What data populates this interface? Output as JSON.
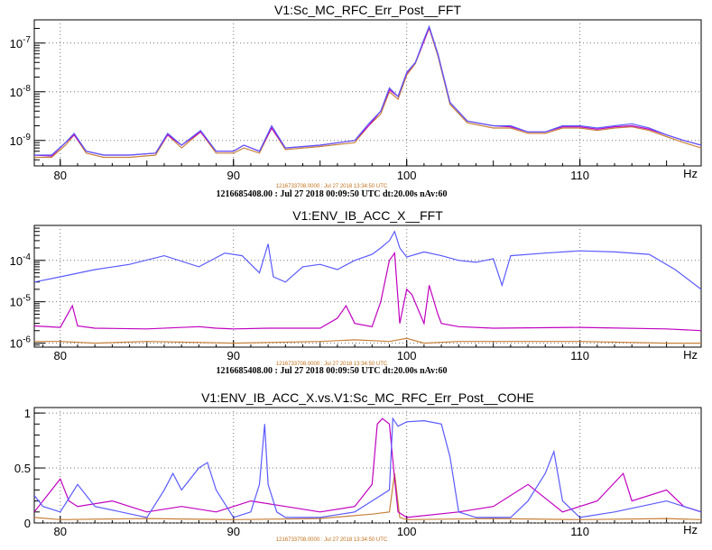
{
  "chart_data": [
    {
      "type": "line",
      "title": "V1:Sc_MC_RFC_Err_Post__FFT",
      "yscale": "log",
      "xlim": [
        78.5,
        117
      ],
      "ylim": [
        3e-10,
        3e-07
      ],
      "x_ticks": [
        "80",
        "90",
        "100",
        "110"
      ],
      "y_ticks": [
        "10^-9",
        "10^-8",
        "10^-7"
      ],
      "grid": true,
      "info_small": "1216733708.0000 : Jul 27 2018 13:34:50 UTC",
      "info": "1216685408.00 : Jul 27 2018 00:09:50 UTC dt:20.00s nAv:60",
      "axis_corner": "Hz",
      "series": [
        {
          "color": "#5a5aff",
          "x": [
            78.5,
            79.5,
            80.3,
            80.8,
            81.5,
            82.5,
            84,
            85.5,
            86.2,
            87,
            88.1,
            89,
            90,
            90.6,
            91.5,
            92.2,
            93,
            95,
            97,
            97.8,
            98.5,
            99,
            99.5,
            100,
            100.5,
            101,
            101.3,
            101.8,
            102.5,
            103.5,
            105,
            106,
            107,
            108,
            109,
            110,
            111,
            112,
            113,
            114,
            115,
            116,
            117
          ],
          "y": [
            5e-10,
            5e-10,
            9e-10,
            1.4e-09,
            6e-10,
            5e-10,
            5e-10,
            5.5e-10,
            1.4e-09,
            8e-10,
            1.6e-09,
            6e-10,
            6e-10,
            8e-10,
            6e-10,
            2e-09,
            7e-10,
            8e-10,
            1e-09,
            2.2e-09,
            4e-09,
            1.2e-08,
            8e-09,
            2.5e-08,
            4e-08,
            1.2e-07,
            2.2e-07,
            6e-08,
            6e-09,
            2.5e-09,
            2e-09,
            2e-09,
            1.5e-09,
            1.5e-09,
            2e-09,
            2e-09,
            1.8e-09,
            2e-09,
            2.2e-09,
            1.8e-09,
            1.3e-09,
            1e-09,
            8e-10
          ]
        },
        {
          "color": "#c000c0",
          "x": [
            78.5,
            79.5,
            80.3,
            80.8,
            81.5,
            82.5,
            84,
            85.5,
            86.2,
            87,
            88.1,
            89,
            90,
            90.6,
            91.5,
            92.2,
            93,
            95,
            97,
            97.8,
            98.5,
            99,
            99.5,
            100,
            100.5,
            101,
            101.3,
            101.8,
            102.5,
            103.5,
            105,
            106,
            107,
            108,
            109,
            110,
            111,
            112,
            113,
            114,
            115,
            116,
            117
          ],
          "y": [
            5e-10,
            4.8e-10,
            9e-10,
            1.3e-09,
            6e-10,
            5e-10,
            5e-10,
            5.5e-10,
            1.3e-09,
            8e-10,
            1.5e-09,
            6e-10,
            6e-10,
            8e-10,
            6e-10,
            1.8e-09,
            7e-10,
            8e-10,
            1e-09,
            2e-09,
            4e-09,
            1.1e-08,
            8e-09,
            2.4e-08,
            4e-08,
            1.1e-07,
            2.1e-07,
            6e-08,
            6e-09,
            2.5e-09,
            2e-09,
            1.9e-09,
            1.5e-09,
            1.5e-09,
            1.9e-09,
            1.9e-09,
            1.7e-09,
            1.9e-09,
            2e-09,
            1.7e-09,
            1.3e-09,
            1e-09,
            8e-10
          ]
        },
        {
          "color": "#c8813a",
          "x": [
            78.5,
            79.5,
            80.3,
            80.8,
            81.5,
            82.5,
            84,
            85.5,
            86.2,
            87,
            88.1,
            89,
            90,
            90.6,
            91.5,
            92.2,
            93,
            95,
            97,
            97.8,
            98.5,
            99,
            99.5,
            100,
            100.5,
            101,
            101.3,
            101.8,
            102.5,
            103.5,
            105,
            106,
            107,
            108,
            109,
            110,
            111,
            112,
            113,
            114,
            115,
            116,
            117
          ],
          "y": [
            4.5e-10,
            4.5e-10,
            8e-10,
            1.3e-09,
            5.5e-10,
            4.5e-10,
            4.5e-10,
            5e-10,
            1.3e-09,
            7e-10,
            1.5e-09,
            5.5e-10,
            5.5e-10,
            7e-10,
            5.5e-10,
            1.8e-09,
            6.5e-10,
            7.5e-10,
            9e-10,
            2e-09,
            3.5e-09,
            1e-08,
            7e-09,
            2.2e-08,
            3.8e-08,
            1.1e-07,
            2e-07,
            5.5e-08,
            5.5e-09,
            2.3e-09,
            1.8e-09,
            1.8e-09,
            1.4e-09,
            1.4e-09,
            1.8e-09,
            1.8e-09,
            1.6e-09,
            1.8e-09,
            1.9e-09,
            1.6e-09,
            1.2e-09,
            9e-10,
            7e-10
          ]
        }
      ]
    },
    {
      "type": "line",
      "title": "V1:ENV_IB_ACC_X__FFT",
      "yscale": "log",
      "xlim": [
        78.5,
        117
      ],
      "ylim": [
        8e-07,
        0.0007
      ],
      "x_ticks": [
        "80",
        "90",
        "100",
        "110"
      ],
      "y_ticks": [
        "10^-6",
        "10^-5",
        "10^-4"
      ],
      "grid": true,
      "info_small": "1216733708.0000 : Jul 27 2018 13:34:50 UTC",
      "info": "1216685408.00 : Jul 27 2018 00:09:50 UTC dt:20.00s nAv:60",
      "axis_corner": "Hz",
      "series": [
        {
          "color": "#5a5aff",
          "x": [
            78.5,
            80,
            82,
            84,
            86,
            88,
            89.5,
            90.5,
            91.5,
            92,
            92.3,
            93,
            94,
            95,
            96,
            97,
            98,
            98.5,
            99,
            99.3,
            99.6,
            100,
            101,
            102,
            103,
            104,
            105,
            105.5,
            106,
            108,
            110,
            112,
            114,
            115.5,
            117
          ],
          "y": [
            3e-05,
            4e-05,
            6e-05,
            8e-05,
            0.00013,
            7e-05,
            0.00015,
            0.00013,
            5e-05,
            0.00025,
            4e-05,
            3e-05,
            7e-05,
            8e-05,
            6e-05,
            0.0001,
            0.00014,
            0.0002,
            0.0003,
            0.0005,
            0.0002,
            0.00012,
            0.00016,
            0.00013,
            0.0001,
            9e-05,
            0.00011,
            2.5e-05,
            0.00013,
            0.00015,
            0.00017,
            0.00016,
            0.00014,
            6e-05,
            2e-05
          ]
        },
        {
          "color": "#c000c0",
          "x": [
            78.5,
            80,
            80.7,
            81,
            82,
            85,
            88,
            89,
            90,
            92,
            95,
            96,
            96.5,
            97,
            98,
            98.5,
            98.8,
            99,
            99.3,
            99.6,
            100,
            100.3,
            101,
            101.3,
            101.8,
            102,
            103,
            105,
            110,
            115,
            117
          ],
          "y": [
            2.6e-06,
            2.4e-06,
            8e-06,
            2.6e-06,
            2.3e-06,
            2.2e-06,
            2.5e-06,
            2.3e-06,
            2.2e-06,
            2.3e-06,
            2.3e-06,
            4e-06,
            8e-06,
            3e-06,
            2.5e-06,
            1e-05,
            4e-05,
            0.0001,
            0.00015,
            3e-06,
            2e-05,
            1.5e-05,
            3e-06,
            2.5e-05,
            5e-06,
            3e-06,
            2.5e-06,
            2.3e-06,
            2.4e-06,
            2.2e-06,
            2e-06
          ]
        },
        {
          "color": "#c8813a",
          "x": [
            78.5,
            80,
            82,
            85,
            90,
            95,
            97,
            99,
            100,
            101,
            103,
            105,
            110,
            115,
            117
          ],
          "y": [
            1.1e-06,
            1.1e-06,
            1e-06,
            1.1e-06,
            1e-06,
            1.1e-06,
            1.2e-06,
            1.1e-06,
            1.3e-06,
            1e-06,
            1.1e-06,
            1.1e-06,
            1.1e-06,
            1e-06,
            1e-06
          ]
        }
      ]
    },
    {
      "type": "line",
      "title": "V1:ENV_IB_ACC_X.vs.V1:Sc_MC_RFC_Err_Post__COHE",
      "yscale": "linear",
      "xlim": [
        78.5,
        117
      ],
      "ylim": [
        0,
        1.05
      ],
      "x_ticks": [
        "80",
        "90",
        "100",
        "110"
      ],
      "y_ticks": [
        "0",
        "0.5",
        "1"
      ],
      "grid": true,
      "info_small": "1216733708.0000 : Jul 27 2018 13:34:50 UTC",
      "axis_corner": "Hz",
      "series": [
        {
          "color": "#5a5aff",
          "x": [
            78.5,
            79,
            80,
            81,
            82,
            85,
            86,
            86.5,
            87,
            88,
            88.5,
            89,
            90,
            91,
            91.5,
            91.8,
            92,
            92.5,
            93,
            95,
            97,
            98,
            99,
            99.2,
            99.5,
            100,
            101,
            102,
            102.5,
            103,
            104,
            106,
            107,
            108,
            108.5,
            109,
            110,
            112,
            115,
            117
          ],
          "y": [
            0.25,
            0.15,
            0.1,
            0.35,
            0.15,
            0.05,
            0.3,
            0.45,
            0.3,
            0.5,
            0.55,
            0.3,
            0.05,
            0.1,
            0.35,
            0.9,
            0.35,
            0.1,
            0.05,
            0.05,
            0.1,
            0.2,
            0.3,
            0.95,
            0.88,
            0.92,
            0.93,
            0.9,
            0.6,
            0.1,
            0.05,
            0.05,
            0.2,
            0.45,
            0.65,
            0.2,
            0.05,
            0.1,
            0.2,
            0.1
          ]
        },
        {
          "color": "#c000c0",
          "x": [
            78.5,
            79.5,
            80,
            80.5,
            81,
            83,
            85,
            87,
            89,
            91,
            93,
            95,
            97,
            98,
            98.3,
            98.6,
            99,
            99.3,
            99.5,
            100,
            103,
            105,
            107,
            109,
            111,
            112.5,
            113,
            115,
            116,
            117
          ],
          "y": [
            0.1,
            0.3,
            0.4,
            0.2,
            0.15,
            0.2,
            0.1,
            0.15,
            0.1,
            0.2,
            0.15,
            0.1,
            0.15,
            0.35,
            0.9,
            0.95,
            0.9,
            0.4,
            0.1,
            0.05,
            0.1,
            0.15,
            0.35,
            0.1,
            0.2,
            0.45,
            0.2,
            0.3,
            0.15,
            0.1
          ]
        },
        {
          "color": "#c8813a",
          "x": [
            78.5,
            80,
            85,
            90,
            95,
            98,
            99,
            99.3,
            99.6,
            100,
            105,
            110,
            115,
            117
          ],
          "y": [
            0.05,
            0.03,
            0.04,
            0.03,
            0.04,
            0.08,
            0.1,
            0.45,
            0.05,
            0.03,
            0.04,
            0.03,
            0.04,
            0.03
          ]
        }
      ]
    }
  ]
}
